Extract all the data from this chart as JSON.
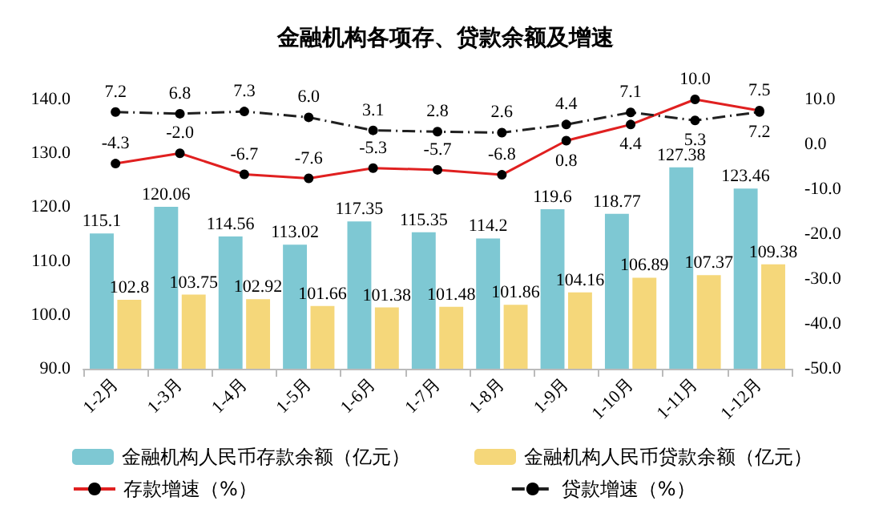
{
  "chart_data": {
    "type": "bar",
    "title": "金融机构各项存、贷款余额及增速",
    "categories": [
      "1-2月",
      "1-3月",
      "1-4月",
      "1-5月",
      "1-6月",
      "1-7月",
      "1-8月",
      "1-9月",
      "1-10月",
      "1-11月",
      "1-12月"
    ],
    "series": [
      {
        "name": "金融机构人民币存款余额（亿元）",
        "color": "#7ec8d3",
        "values": [
          115.1,
          120.06,
          114.56,
          113.02,
          117.35,
          115.35,
          114.2,
          119.6,
          118.77,
          127.38,
          123.46
        ],
        "value_labels": [
          "115.1",
          "120.06",
          "114.56",
          "113.02",
          "117.35",
          "115.35",
          "114.2",
          "119.6",
          "118.77",
          "127.38",
          "123.46"
        ]
      },
      {
        "name": "金融机构人民币贷款余额（亿元）",
        "color": "#f5d77a",
        "values": [
          102.8,
          103.75,
          102.92,
          101.66,
          101.38,
          101.48,
          101.86,
          104.16,
          106.89,
          107.37,
          109.38
        ],
        "value_labels": [
          "102.8",
          "103.75",
          "102.92",
          "101.66",
          "101.38",
          "101.48",
          "101.86",
          "104.16",
          "106.89",
          "107.37",
          "109.38"
        ]
      },
      {
        "name": "存款增速（%）",
        "type": "line",
        "axis": "y2",
        "color": "#e02020",
        "marker": "circle",
        "line_style": "solid",
        "values": [
          -4.3,
          -2.0,
          -6.7,
          -7.6,
          -5.3,
          -5.7,
          -6.8,
          0.8,
          4.4,
          10.0,
          7.5
        ],
        "value_labels": [
          "-4.3",
          "-2.0",
          "-6.7",
          "-7.6",
          "-5.3",
          "-5.7",
          "-6.8",
          "0.8",
          "4.4",
          "10.0",
          "7.5"
        ]
      },
      {
        "name": "贷款增速（%）",
        "type": "line",
        "axis": "y2",
        "color": "#202020",
        "marker": "circle",
        "line_style": "dashed",
        "values": [
          7.2,
          6.8,
          7.3,
          6.0,
          3.1,
          2.8,
          2.6,
          4.4,
          7.1,
          5.3,
          7.2
        ],
        "value_labels": [
          "7.2",
          "6.8",
          "7.3",
          "6.0",
          "3.1",
          "2.8",
          "2.6",
          "4.4",
          "7.1",
          "5.3",
          "7.2"
        ]
      }
    ],
    "ylim": [
      90,
      140
    ],
    "yticks": [
      {
        "value": 90,
        "label": "90.0"
      },
      {
        "value": 100,
        "label": "100.0"
      },
      {
        "value": 110,
        "label": "110.0"
      },
      {
        "value": 120,
        "label": "120.0"
      },
      {
        "value": 130,
        "label": "130.0"
      },
      {
        "value": 140,
        "label": "140.0"
      }
    ],
    "y2lim": [
      -50,
      10
    ],
    "y2ticks": [
      {
        "value": -50,
        "label": "-50.0"
      },
      {
        "value": -40,
        "label": "-40.0"
      },
      {
        "value": -30,
        "label": "-30.0"
      },
      {
        "value": -20,
        "label": "-20.0"
      },
      {
        "value": -10,
        "label": "-10.0"
      },
      {
        "value": 0,
        "label": "0.0"
      },
      {
        "value": 10,
        "label": "10.0"
      }
    ],
    "grid": false,
    "legend": "bottom"
  }
}
